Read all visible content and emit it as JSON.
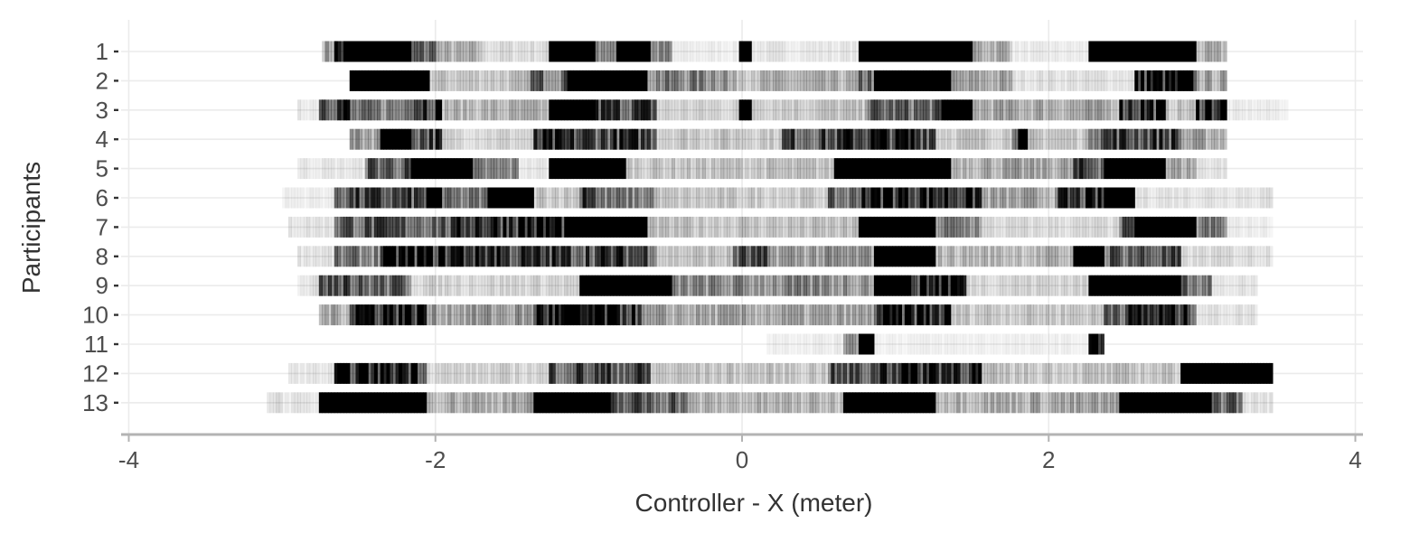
{
  "chart_data": {
    "type": "heatmap",
    "title": "",
    "xlabel": "Controller - X (meter)",
    "ylabel": "Participants",
    "xlim": [
      -4.05,
      4.05
    ],
    "xticks": [
      -4,
      -2,
      0,
      2,
      4
    ],
    "xtick_labels": [
      "-4",
      "-2",
      "0",
      "2",
      "4"
    ],
    "grid": "on",
    "legend": "none",
    "colors": {
      "mark": "#000000",
      "grid": "#ebebeb",
      "axis": "#b3b3b3",
      "text": "#4d4d4d",
      "background": "#ffffff"
    },
    "cell_width": 0.02,
    "rows": [
      {
        "label": "1",
        "segments": [
          [
            -2.74,
            -2.66,
            0.35
          ],
          [
            -2.66,
            -2.56,
            0.85
          ],
          [
            -2.56,
            -2.16,
            1
          ],
          [
            -2.16,
            -1.98,
            0.55
          ],
          [
            -1.98,
            -1.7,
            0.25
          ],
          [
            -1.7,
            -1.26,
            0.12
          ],
          [
            -1.26,
            -0.96,
            1
          ],
          [
            -0.96,
            -0.82,
            0.5
          ],
          [
            -0.82,
            -0.6,
            1
          ],
          [
            -0.6,
            -0.46,
            0.4
          ],
          [
            -0.46,
            -0.02,
            0.06
          ],
          [
            -0.02,
            0.06,
            1
          ],
          [
            0.06,
            0.76,
            0.08
          ],
          [
            0.76,
            1.5,
            1
          ],
          [
            1.5,
            1.76,
            0.3
          ],
          [
            1.76,
            2.26,
            0.06
          ],
          [
            2.26,
            2.96,
            1
          ],
          [
            2.96,
            3.16,
            0.25
          ]
        ]
      },
      {
        "label": "2",
        "segments": [
          [
            -2.56,
            -2.04,
            1
          ],
          [
            -2.04,
            -1.4,
            0.2
          ],
          [
            -1.4,
            -1.14,
            0.55
          ],
          [
            -1.14,
            -0.62,
            1
          ],
          [
            -0.62,
            -0.1,
            0.45
          ],
          [
            -0.1,
            0.76,
            0.25
          ],
          [
            0.76,
            0.86,
            0.55
          ],
          [
            0.86,
            1.36,
            1
          ],
          [
            1.36,
            1.76,
            0.3
          ],
          [
            1.76,
            2.56,
            0.1
          ],
          [
            2.56,
            2.96,
            0.85
          ],
          [
            2.96,
            3.16,
            0.3
          ]
        ]
      },
      {
        "label": "3",
        "segments": [
          [
            -2.9,
            -2.76,
            0.08
          ],
          [
            -2.76,
            -2.56,
            0.8
          ],
          [
            -2.56,
            -2.2,
            0.45
          ],
          [
            -2.2,
            -1.96,
            0.85
          ],
          [
            -1.96,
            -1.26,
            0.25
          ],
          [
            -1.26,
            -0.96,
            1
          ],
          [
            -0.96,
            -0.56,
            0.7
          ],
          [
            -0.56,
            -0.02,
            0.15
          ],
          [
            -0.02,
            0.06,
            1
          ],
          [
            0.06,
            0.8,
            0.2
          ],
          [
            0.8,
            1.3,
            0.55
          ],
          [
            1.3,
            1.5,
            1
          ],
          [
            1.5,
            2.46,
            0.3
          ],
          [
            2.46,
            2.76,
            0.8
          ],
          [
            2.76,
            2.96,
            0.2
          ],
          [
            2.96,
            3.16,
            0.9
          ],
          [
            3.16,
            3.56,
            0.06
          ]
        ]
      },
      {
        "label": "4",
        "segments": [
          [
            -2.56,
            -2.36,
            0.35
          ],
          [
            -2.36,
            -2.16,
            0.95
          ],
          [
            -2.16,
            -1.96,
            0.7
          ],
          [
            -1.96,
            -1.36,
            0.15
          ],
          [
            -1.36,
            -0.56,
            0.7
          ],
          [
            -0.56,
            0.26,
            0.2
          ],
          [
            0.26,
            0.66,
            0.65
          ],
          [
            0.66,
            1.26,
            0.8
          ],
          [
            1.26,
            1.76,
            0.2
          ],
          [
            1.76,
            1.86,
            0.9
          ],
          [
            1.86,
            2.26,
            0.2
          ],
          [
            2.26,
            2.86,
            0.7
          ],
          [
            2.86,
            3.16,
            0.3
          ]
        ]
      },
      {
        "label": "5",
        "segments": [
          [
            -2.9,
            -2.46,
            0.08
          ],
          [
            -2.46,
            -2.16,
            0.6
          ],
          [
            -2.16,
            -1.76,
            1
          ],
          [
            -1.76,
            -1.46,
            0.4
          ],
          [
            -1.46,
            -1.26,
            0.08
          ],
          [
            -1.26,
            -0.76,
            1
          ],
          [
            -0.76,
            0.6,
            0.2
          ],
          [
            0.6,
            1.36,
            1
          ],
          [
            1.36,
            2.16,
            0.3
          ],
          [
            2.16,
            2.36,
            0.65
          ],
          [
            2.36,
            2.76,
            1
          ],
          [
            2.76,
            2.96,
            0.3
          ],
          [
            2.96,
            3.16,
            0.1
          ]
        ]
      },
      {
        "label": "6",
        "segments": [
          [
            -3.0,
            -2.66,
            0.06
          ],
          [
            -2.66,
            -2.06,
            0.65
          ],
          [
            -2.06,
            -1.96,
            1
          ],
          [
            -1.96,
            -1.66,
            0.45
          ],
          [
            -1.66,
            -1.36,
            1
          ],
          [
            -1.36,
            -1.06,
            0.2
          ],
          [
            -1.06,
            -0.96,
            0.9
          ],
          [
            -0.96,
            -0.56,
            0.45
          ],
          [
            -0.56,
            0.56,
            0.18
          ],
          [
            0.56,
            0.76,
            0.5
          ],
          [
            0.76,
            1.16,
            0.9
          ],
          [
            1.16,
            1.56,
            0.85
          ],
          [
            1.56,
            2.06,
            0.3
          ],
          [
            2.06,
            2.36,
            0.7
          ],
          [
            2.36,
            2.56,
            1
          ],
          [
            2.56,
            3.46,
            0.1
          ]
        ]
      },
      {
        "label": "7",
        "segments": [
          [
            -2.96,
            -2.66,
            0.1
          ],
          [
            -2.66,
            -1.86,
            0.6
          ],
          [
            -1.86,
            -1.16,
            0.85
          ],
          [
            -1.16,
            -0.62,
            1
          ],
          [
            -0.62,
            0.76,
            0.2
          ],
          [
            0.76,
            1.26,
            1
          ],
          [
            1.26,
            1.56,
            0.45
          ],
          [
            1.56,
            2.46,
            0.12
          ],
          [
            2.46,
            2.56,
            0.55
          ],
          [
            2.56,
            2.96,
            1
          ],
          [
            2.96,
            3.16,
            0.45
          ],
          [
            3.16,
            3.46,
            0.06
          ]
        ]
      },
      {
        "label": "8",
        "segments": [
          [
            -2.9,
            -2.66,
            0.1
          ],
          [
            -2.66,
            -2.36,
            0.45
          ],
          [
            -2.36,
            -1.56,
            0.85
          ],
          [
            -1.56,
            -0.56,
            0.7
          ],
          [
            -0.56,
            -0.06,
            0.2
          ],
          [
            -0.06,
            0.16,
            0.6
          ],
          [
            0.16,
            0.86,
            0.35
          ],
          [
            0.86,
            1.26,
            1
          ],
          [
            1.26,
            2.16,
            0.25
          ],
          [
            2.16,
            2.36,
            1
          ],
          [
            2.36,
            2.86,
            0.6
          ],
          [
            2.86,
            3.46,
            0.12
          ]
        ]
      },
      {
        "label": "9",
        "segments": [
          [
            -2.9,
            -2.76,
            0.1
          ],
          [
            -2.76,
            -2.56,
            0.8
          ],
          [
            -2.56,
            -2.16,
            0.55
          ],
          [
            -2.16,
            -1.06,
            0.15
          ],
          [
            -1.06,
            -0.46,
            0.95
          ],
          [
            -0.46,
            0.86,
            0.4
          ],
          [
            0.86,
            1.06,
            1
          ],
          [
            1.06,
            1.46,
            0.9
          ],
          [
            1.46,
            2.26,
            0.15
          ],
          [
            2.26,
            2.86,
            1
          ],
          [
            2.86,
            3.06,
            0.6
          ],
          [
            3.06,
            3.36,
            0.08
          ]
        ]
      },
      {
        "label": "10",
        "segments": [
          [
            -2.76,
            -2.56,
            0.3
          ],
          [
            -2.56,
            -2.06,
            0.9
          ],
          [
            -2.06,
            -1.36,
            0.35
          ],
          [
            -1.36,
            -0.66,
            0.85
          ],
          [
            -0.66,
            0.86,
            0.3
          ],
          [
            0.86,
            1.36,
            0.8
          ],
          [
            1.36,
            2.36,
            0.2
          ],
          [
            2.36,
            2.56,
            0.7
          ],
          [
            2.56,
            2.96,
            0.8
          ],
          [
            2.96,
            3.36,
            0.1
          ]
        ]
      },
      {
        "label": "11",
        "segments": [
          [
            0.16,
            0.66,
            0.06
          ],
          [
            0.66,
            0.76,
            0.5
          ],
          [
            0.76,
            0.86,
            1
          ],
          [
            0.86,
            2.26,
            0.05
          ],
          [
            2.26,
            2.36,
            0.9
          ]
        ]
      },
      {
        "label": "12",
        "segments": [
          [
            -2.96,
            -2.66,
            0.08
          ],
          [
            -2.66,
            -2.06,
            0.9
          ],
          [
            -2.06,
            -1.26,
            0.15
          ],
          [
            -1.26,
            -0.6,
            0.65
          ],
          [
            -0.6,
            0.56,
            0.2
          ],
          [
            0.56,
            0.86,
            0.6
          ],
          [
            0.86,
            1.56,
            0.85
          ],
          [
            1.56,
            2.86,
            0.2
          ],
          [
            2.86,
            3.46,
            0.95
          ]
        ]
      },
      {
        "label": "13",
        "segments": [
          [
            -3.1,
            -3.0,
            0.12
          ],
          [
            -3.0,
            -2.76,
            0.08
          ],
          [
            -2.76,
            -2.06,
            0.95
          ],
          [
            -2.06,
            -1.36,
            0.3
          ],
          [
            -1.36,
            -0.86,
            1
          ],
          [
            -0.86,
            -0.36,
            0.6
          ],
          [
            -0.36,
            0.66,
            0.25
          ],
          [
            0.66,
            1.26,
            1
          ],
          [
            1.26,
            2.46,
            0.3
          ],
          [
            2.46,
            3.06,
            1
          ],
          [
            3.06,
            3.26,
            0.6
          ],
          [
            3.26,
            3.46,
            0.1
          ]
        ]
      }
    ]
  }
}
